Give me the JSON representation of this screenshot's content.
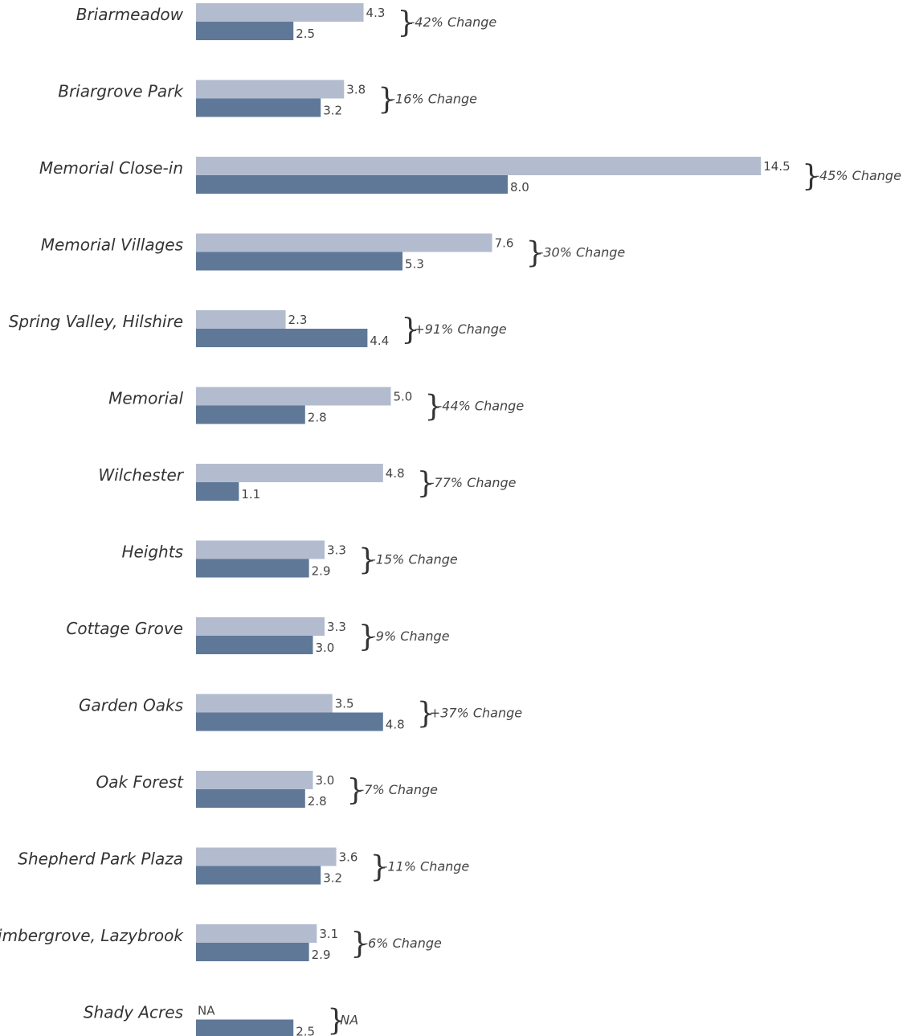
{
  "chart_data": {
    "type": "bar",
    "orientation": "horizontal",
    "grid": false,
    "colors": {
      "series_1": "#b3bccf",
      "series_2": "#5f7898",
      "text": "#333333"
    },
    "categories": [
      "Briarmeadow",
      "Briargrove Park",
      "Memorial Close-in",
      "Memorial Villages",
      "Spring Valley, Hilshire",
      "Memorial",
      "Wilchester",
      "Heights",
      "Cottage Grove",
      "Garden Oaks",
      "Oak Forest",
      "Shepherd Park Plaza",
      "Timbergrove, Lazybrook",
      "Shady Acres"
    ],
    "series": [
      {
        "values": [
          4.3,
          3.8,
          14.5,
          7.6,
          2.3,
          5.0,
          4.8,
          3.3,
          3.3,
          3.5,
          3.0,
          3.6,
          3.1,
          null
        ],
        "labels": [
          "4.3",
          "3.8",
          "14.5",
          "7.6",
          "2.3",
          "5.0",
          "4.8",
          "3.3",
          "3.3",
          "3.5",
          "3.0",
          "3.6",
          "3.1",
          "NA"
        ]
      },
      {
        "values": [
          2.5,
          3.2,
          8.0,
          5.3,
          4.4,
          2.8,
          1.1,
          2.9,
          3.0,
          4.8,
          2.8,
          3.2,
          2.9,
          2.5
        ],
        "labels": [
          "2.5",
          "3.2",
          "8.0",
          "5.3",
          "4.4",
          "2.8",
          "1.1",
          "2.9",
          "3.0",
          "4.8",
          "2.8",
          "3.2",
          "2.9",
          "2.5"
        ]
      }
    ],
    "annotations": [
      "-42% Change",
      "-16% Change",
      "-45% Change",
      "-30% Change",
      "+91% Change",
      "-44% Change",
      "-77% Change",
      "-15% Change",
      "-9% Change",
      "+37% Change",
      "-7% Change",
      "-11% Change",
      "-6% Change",
      "NA"
    ],
    "brace_symbol": "}",
    "xlim": [
      0,
      14.5
    ]
  }
}
